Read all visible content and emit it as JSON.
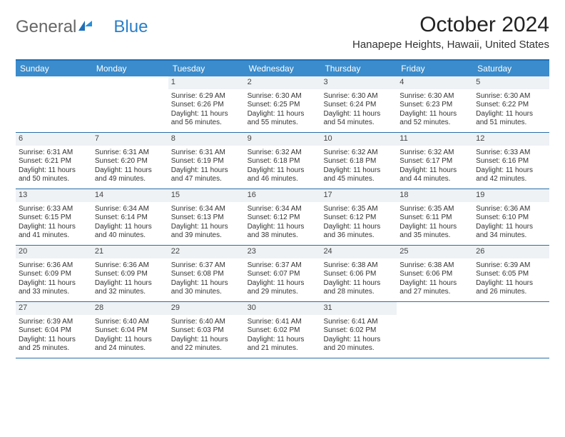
{
  "logo": {
    "general": "General",
    "blue": "Blue"
  },
  "title": "October 2024",
  "location": "Hanapepe Heights, Hawaii, United States",
  "colors": {
    "header_bg": "#3a8ccc",
    "header_border": "#1e6fb8",
    "row_border": "#2a6fa8",
    "daynum_bg": "#eef2f5",
    "text": "#333333",
    "logo_blue": "#2a7fc9",
    "logo_gray": "#666666"
  },
  "dow": [
    "Sunday",
    "Monday",
    "Tuesday",
    "Wednesday",
    "Thursday",
    "Friday",
    "Saturday"
  ],
  "weeks": [
    [
      {
        "n": "",
        "sr": "",
        "ss": "",
        "dl": ""
      },
      {
        "n": "",
        "sr": "",
        "ss": "",
        "dl": ""
      },
      {
        "n": "1",
        "sr": "Sunrise: 6:29 AM",
        "ss": "Sunset: 6:26 PM",
        "dl": "Daylight: 11 hours and 56 minutes."
      },
      {
        "n": "2",
        "sr": "Sunrise: 6:30 AM",
        "ss": "Sunset: 6:25 PM",
        "dl": "Daylight: 11 hours and 55 minutes."
      },
      {
        "n": "3",
        "sr": "Sunrise: 6:30 AM",
        "ss": "Sunset: 6:24 PM",
        "dl": "Daylight: 11 hours and 54 minutes."
      },
      {
        "n": "4",
        "sr": "Sunrise: 6:30 AM",
        "ss": "Sunset: 6:23 PM",
        "dl": "Daylight: 11 hours and 52 minutes."
      },
      {
        "n": "5",
        "sr": "Sunrise: 6:30 AM",
        "ss": "Sunset: 6:22 PM",
        "dl": "Daylight: 11 hours and 51 minutes."
      }
    ],
    [
      {
        "n": "6",
        "sr": "Sunrise: 6:31 AM",
        "ss": "Sunset: 6:21 PM",
        "dl": "Daylight: 11 hours and 50 minutes."
      },
      {
        "n": "7",
        "sr": "Sunrise: 6:31 AM",
        "ss": "Sunset: 6:20 PM",
        "dl": "Daylight: 11 hours and 49 minutes."
      },
      {
        "n": "8",
        "sr": "Sunrise: 6:31 AM",
        "ss": "Sunset: 6:19 PM",
        "dl": "Daylight: 11 hours and 47 minutes."
      },
      {
        "n": "9",
        "sr": "Sunrise: 6:32 AM",
        "ss": "Sunset: 6:18 PM",
        "dl": "Daylight: 11 hours and 46 minutes."
      },
      {
        "n": "10",
        "sr": "Sunrise: 6:32 AM",
        "ss": "Sunset: 6:18 PM",
        "dl": "Daylight: 11 hours and 45 minutes."
      },
      {
        "n": "11",
        "sr": "Sunrise: 6:32 AM",
        "ss": "Sunset: 6:17 PM",
        "dl": "Daylight: 11 hours and 44 minutes."
      },
      {
        "n": "12",
        "sr": "Sunrise: 6:33 AM",
        "ss": "Sunset: 6:16 PM",
        "dl": "Daylight: 11 hours and 42 minutes."
      }
    ],
    [
      {
        "n": "13",
        "sr": "Sunrise: 6:33 AM",
        "ss": "Sunset: 6:15 PM",
        "dl": "Daylight: 11 hours and 41 minutes."
      },
      {
        "n": "14",
        "sr": "Sunrise: 6:34 AM",
        "ss": "Sunset: 6:14 PM",
        "dl": "Daylight: 11 hours and 40 minutes."
      },
      {
        "n": "15",
        "sr": "Sunrise: 6:34 AM",
        "ss": "Sunset: 6:13 PM",
        "dl": "Daylight: 11 hours and 39 minutes."
      },
      {
        "n": "16",
        "sr": "Sunrise: 6:34 AM",
        "ss": "Sunset: 6:12 PM",
        "dl": "Daylight: 11 hours and 38 minutes."
      },
      {
        "n": "17",
        "sr": "Sunrise: 6:35 AM",
        "ss": "Sunset: 6:12 PM",
        "dl": "Daylight: 11 hours and 36 minutes."
      },
      {
        "n": "18",
        "sr": "Sunrise: 6:35 AM",
        "ss": "Sunset: 6:11 PM",
        "dl": "Daylight: 11 hours and 35 minutes."
      },
      {
        "n": "19",
        "sr": "Sunrise: 6:36 AM",
        "ss": "Sunset: 6:10 PM",
        "dl": "Daylight: 11 hours and 34 minutes."
      }
    ],
    [
      {
        "n": "20",
        "sr": "Sunrise: 6:36 AM",
        "ss": "Sunset: 6:09 PM",
        "dl": "Daylight: 11 hours and 33 minutes."
      },
      {
        "n": "21",
        "sr": "Sunrise: 6:36 AM",
        "ss": "Sunset: 6:09 PM",
        "dl": "Daylight: 11 hours and 32 minutes."
      },
      {
        "n": "22",
        "sr": "Sunrise: 6:37 AM",
        "ss": "Sunset: 6:08 PM",
        "dl": "Daylight: 11 hours and 30 minutes."
      },
      {
        "n": "23",
        "sr": "Sunrise: 6:37 AM",
        "ss": "Sunset: 6:07 PM",
        "dl": "Daylight: 11 hours and 29 minutes."
      },
      {
        "n": "24",
        "sr": "Sunrise: 6:38 AM",
        "ss": "Sunset: 6:06 PM",
        "dl": "Daylight: 11 hours and 28 minutes."
      },
      {
        "n": "25",
        "sr": "Sunrise: 6:38 AM",
        "ss": "Sunset: 6:06 PM",
        "dl": "Daylight: 11 hours and 27 minutes."
      },
      {
        "n": "26",
        "sr": "Sunrise: 6:39 AM",
        "ss": "Sunset: 6:05 PM",
        "dl": "Daylight: 11 hours and 26 minutes."
      }
    ],
    [
      {
        "n": "27",
        "sr": "Sunrise: 6:39 AM",
        "ss": "Sunset: 6:04 PM",
        "dl": "Daylight: 11 hours and 25 minutes."
      },
      {
        "n": "28",
        "sr": "Sunrise: 6:40 AM",
        "ss": "Sunset: 6:04 PM",
        "dl": "Daylight: 11 hours and 24 minutes."
      },
      {
        "n": "29",
        "sr": "Sunrise: 6:40 AM",
        "ss": "Sunset: 6:03 PM",
        "dl": "Daylight: 11 hours and 22 minutes."
      },
      {
        "n": "30",
        "sr": "Sunrise: 6:41 AM",
        "ss": "Sunset: 6:02 PM",
        "dl": "Daylight: 11 hours and 21 minutes."
      },
      {
        "n": "31",
        "sr": "Sunrise: 6:41 AM",
        "ss": "Sunset: 6:02 PM",
        "dl": "Daylight: 11 hours and 20 minutes."
      },
      {
        "n": "",
        "sr": "",
        "ss": "",
        "dl": ""
      },
      {
        "n": "",
        "sr": "",
        "ss": "",
        "dl": ""
      }
    ]
  ]
}
